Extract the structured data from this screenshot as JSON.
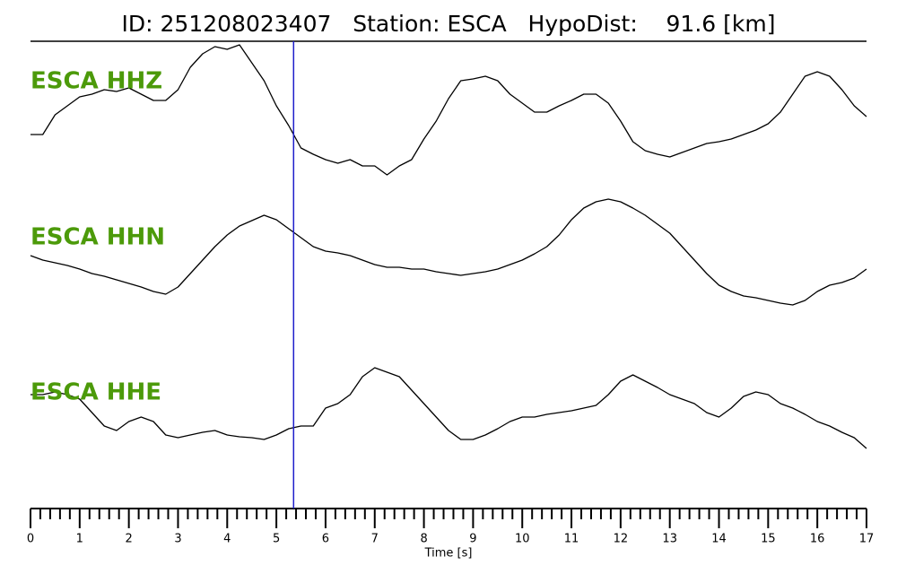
{
  "chart_data": {
    "type": "line",
    "title": "ID: 251208023407   Station: ESCA   HypoDist:    91.6 [km]",
    "xlabel": "Time [s]",
    "xlim": [
      0,
      17
    ],
    "xticks": [
      0,
      1,
      2,
      3,
      4,
      5,
      6,
      7,
      8,
      9,
      10,
      11,
      12,
      13,
      14,
      15,
      16,
      17
    ],
    "xminor_step": 0.2,
    "pick_time": 5.35,
    "pick_color": "#1f1fcc",
    "x": [
      0,
      0.25,
      0.5,
      0.75,
      1,
      1.25,
      1.5,
      1.75,
      2,
      2.25,
      2.5,
      2.75,
      3,
      3.25,
      3.5,
      3.75,
      4,
      4.25,
      4.5,
      4.75,
      5,
      5.25,
      5.5,
      5.75,
      6,
      6.25,
      6.5,
      6.75,
      7,
      7.25,
      7.5,
      7.75,
      8,
      8.25,
      8.5,
      8.75,
      9,
      9.25,
      9.5,
      9.75,
      10,
      10.25,
      10.5,
      10.75,
      11,
      11.25,
      11.5,
      11.75,
      12,
      12.25,
      12.5,
      12.75,
      13,
      13.25,
      13.5,
      13.75,
      14,
      14.25,
      14.5,
      14.75,
      15,
      15.25,
      15.5,
      15.75,
      16,
      16.25,
      16.5,
      16.75,
      17
    ],
    "label_color": "#4c9a0a",
    "series": [
      {
        "name": "ESCA HHZ",
        "color": "#000000",
        "values": [
          -30,
          -30,
          -8,
          2,
          12,
          15,
          20,
          18,
          22,
          15,
          8,
          8,
          20,
          45,
          60,
          68,
          65,
          70,
          50,
          30,
          2,
          -20,
          -45,
          -52,
          -58,
          -62,
          -58,
          -65,
          -65,
          -75,
          -65,
          -58,
          -35,
          -15,
          10,
          30,
          32,
          35,
          30,
          15,
          5,
          -5,
          -5,
          2,
          8,
          15,
          15,
          5,
          -15,
          -38,
          -48,
          -52,
          -55,
          -50,
          -45,
          -40,
          -38,
          -35,
          -30,
          -25,
          -18,
          -5,
          15,
          35,
          40,
          35,
          20,
          2,
          -10
        ]
      },
      {
        "name": "ESCA HHN",
        "color": "#000000",
        "values": [
          0,
          -5,
          -8,
          -11,
          -15,
          -20,
          -23,
          -27,
          -31,
          -35,
          -40,
          -43,
          -35,
          -20,
          -5,
          10,
          23,
          33,
          39,
          45,
          40,
          30,
          20,
          10,
          5,
          3,
          0,
          -5,
          -10,
          -13,
          -13,
          -15,
          -15,
          -18,
          -20,
          -22,
          -20,
          -18,
          -15,
          -10,
          -5,
          2,
          10,
          23,
          40,
          53,
          60,
          63,
          60,
          53,
          45,
          35,
          25,
          10,
          -5,
          -20,
          -33,
          -40,
          -45,
          -47,
          -50,
          -53,
          -55,
          -50,
          -40,
          -33,
          -30,
          -25,
          -15
        ]
      },
      {
        "name": "ESCA HHE",
        "color": "#000000",
        "values": [
          25,
          25,
          28,
          25,
          20,
          5,
          -10,
          -15,
          -5,
          0,
          -5,
          -20,
          -23,
          -20,
          -17,
          -15,
          -20,
          -22,
          -23,
          -25,
          -20,
          -13,
          -10,
          -10,
          10,
          15,
          25,
          45,
          55,
          50,
          45,
          30,
          15,
          0,
          -15,
          -25,
          -25,
          -20,
          -13,
          -5,
          0,
          0,
          3,
          5,
          7,
          10,
          13,
          25,
          40,
          47,
          40,
          33,
          25,
          20,
          15,
          5,
          0,
          10,
          23,
          28,
          25,
          15,
          10,
          3,
          -5,
          -10,
          -17,
          -23,
          -35
        ]
      }
    ]
  }
}
